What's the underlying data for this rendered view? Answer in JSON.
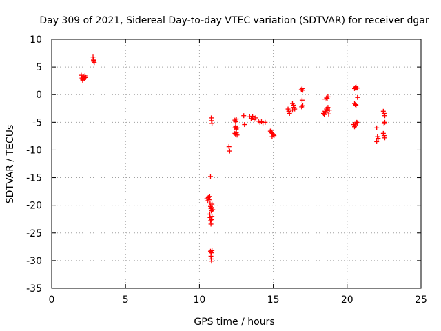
{
  "chart_data": {
    "type": "scatter",
    "title": "Day 309 of 2021, Sidereal Day-to-day VTEC variation (SDTVAR) for receiver dgar",
    "xlabel": "GPS time / hours",
    "ylabel": "SDTVAR / TECUs",
    "xlim": [
      0,
      25
    ],
    "ylim": [
      -35,
      10
    ],
    "xticks": [
      0,
      5,
      10,
      15,
      20,
      25
    ],
    "yticks": [
      -35,
      -30,
      -25,
      -20,
      -15,
      -10,
      -5,
      0,
      5,
      10
    ],
    "grid": true,
    "marker": "+",
    "color": "#ff0000",
    "series": [
      {
        "name": "SDTVAR",
        "points": [
          [
            2.0,
            3.5
          ],
          [
            2.05,
            3.0
          ],
          [
            2.1,
            2.7
          ],
          [
            2.15,
            3.3
          ],
          [
            2.2,
            2.9
          ],
          [
            2.25,
            3.4
          ],
          [
            2.3,
            3.1
          ],
          [
            2.1,
            2.5
          ],
          [
            2.8,
            6.8
          ],
          [
            2.82,
            6.4
          ],
          [
            2.85,
            6.0
          ],
          [
            2.88,
            5.8
          ],
          [
            2.83,
            6.2
          ],
          [
            10.8,
            -4.2
          ],
          [
            10.82,
            -4.7
          ],
          [
            10.85,
            -5.2
          ],
          [
            10.75,
            -14.8
          ],
          [
            10.5,
            -18.8
          ],
          [
            10.55,
            -19.2
          ],
          [
            10.6,
            -18.6
          ],
          [
            10.65,
            -19.0
          ],
          [
            10.7,
            -18.4
          ],
          [
            10.72,
            -19.6
          ],
          [
            10.75,
            -20.2
          ],
          [
            10.78,
            -20.6
          ],
          [
            10.8,
            -21.0
          ],
          [
            10.82,
            -20.4
          ],
          [
            10.85,
            -19.8
          ],
          [
            10.9,
            -20.8
          ],
          [
            10.7,
            -21.6
          ],
          [
            10.72,
            -22.2
          ],
          [
            10.75,
            -22.8
          ],
          [
            10.78,
            -23.4
          ],
          [
            10.8,
            -22.6
          ],
          [
            10.85,
            -22.0
          ],
          [
            10.75,
            -28.3
          ],
          [
            10.8,
            -28.6
          ],
          [
            10.85,
            -28.2
          ],
          [
            10.78,
            -29.2
          ],
          [
            10.8,
            -29.7
          ],
          [
            10.82,
            -30.1
          ],
          [
            12.0,
            -9.4
          ],
          [
            12.05,
            -10.2
          ],
          [
            12.4,
            -4.6
          ],
          [
            12.45,
            -4.9
          ],
          [
            12.5,
            -4.4
          ],
          [
            12.4,
            -6.0
          ],
          [
            12.45,
            -5.8
          ],
          [
            12.5,
            -6.2
          ],
          [
            12.55,
            -6.0
          ],
          [
            12.4,
            -7.0
          ],
          [
            12.45,
            -7.2
          ],
          [
            12.5,
            -6.9
          ],
          [
            12.55,
            -7.3
          ],
          [
            13.0,
            -3.8
          ],
          [
            13.05,
            -5.4
          ],
          [
            13.4,
            -4.0
          ],
          [
            13.5,
            -4.3
          ],
          [
            13.6,
            -3.9
          ],
          [
            13.7,
            -4.5
          ],
          [
            13.8,
            -4.2
          ],
          [
            14.0,
            -4.8
          ],
          [
            14.1,
            -5.0
          ],
          [
            14.2,
            -4.9
          ],
          [
            14.3,
            -5.1
          ],
          [
            14.45,
            -5.0
          ],
          [
            14.8,
            -6.6
          ],
          [
            14.85,
            -6.4
          ],
          [
            14.9,
            -6.9
          ],
          [
            14.95,
            -7.1
          ],
          [
            15.0,
            -7.3
          ],
          [
            14.92,
            -7.6
          ],
          [
            15.05,
            -7.4
          ],
          [
            14.88,
            -6.8
          ],
          [
            16.0,
            -2.6
          ],
          [
            16.05,
            -3.0
          ],
          [
            16.1,
            -3.4
          ],
          [
            16.3,
            -1.6
          ],
          [
            16.35,
            -1.9
          ],
          [
            16.4,
            -2.3
          ],
          [
            16.45,
            -2.6
          ],
          [
            16.3,
            -2.8
          ],
          [
            16.9,
            0.9
          ],
          [
            16.95,
            1.1
          ],
          [
            17.0,
            0.8
          ],
          [
            16.95,
            -1.0
          ],
          [
            17.0,
            -2.0
          ],
          [
            16.92,
            -2.2
          ],
          [
            18.4,
            -3.4
          ],
          [
            18.5,
            -3.0
          ],
          [
            18.6,
            -2.6
          ],
          [
            18.7,
            -2.3
          ],
          [
            18.8,
            -2.8
          ],
          [
            18.45,
            -3.6
          ],
          [
            18.55,
            -3.2
          ],
          [
            18.65,
            -2.9
          ],
          [
            18.75,
            -3.5
          ],
          [
            18.5,
            -0.8
          ],
          [
            18.6,
            -0.6
          ],
          [
            18.7,
            -0.4
          ],
          [
            18.65,
            -0.7
          ],
          [
            20.5,
            1.1
          ],
          [
            20.55,
            1.3
          ],
          [
            20.6,
            1.4
          ],
          [
            20.65,
            1.2
          ],
          [
            20.7,
            1.2
          ],
          [
            20.7,
            -0.5
          ],
          [
            20.5,
            -1.6
          ],
          [
            20.55,
            -1.8
          ],
          [
            20.6,
            -1.9
          ],
          [
            20.45,
            -5.4
          ],
          [
            20.5,
            -5.8
          ],
          [
            20.55,
            -5.6
          ],
          [
            20.6,
            -5.2
          ],
          [
            20.65,
            -5.0
          ],
          [
            20.7,
            -5.1
          ],
          [
            22.0,
            -6.0
          ],
          [
            22.05,
            -7.6
          ],
          [
            22.1,
            -8.0
          ],
          [
            22.0,
            -8.5
          ],
          [
            22.1,
            -7.9
          ],
          [
            22.45,
            -3.0
          ],
          [
            22.5,
            -3.4
          ],
          [
            22.55,
            -3.8
          ],
          [
            22.5,
            -5.2
          ],
          [
            22.55,
            -5.0
          ],
          [
            22.45,
            -7.0
          ],
          [
            22.5,
            -7.4
          ],
          [
            22.55,
            -7.8
          ]
        ]
      }
    ]
  }
}
